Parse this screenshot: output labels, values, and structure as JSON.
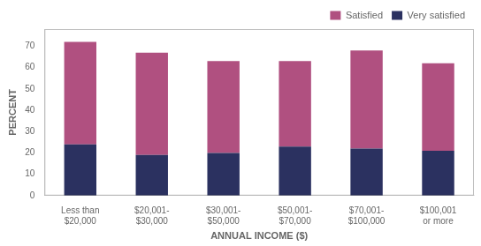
{
  "chart_data": {
    "type": "bar",
    "categories": [
      "Less than\n$20,000",
      "$20,001-\n$30,000",
      "$30,001-\n$50,000",
      "$50,001-\n$70,000",
      "$70,001-\n$100,000",
      "$100,001\nor more"
    ],
    "series": [
      {
        "name": "Very satisfied",
        "color": "#2b3160",
        "values": [
          24,
          19,
          20,
          23,
          22,
          21
        ]
      },
      {
        "name": "Satisfied",
        "color": "#b05080",
        "values": [
          48,
          48,
          43,
          40,
          46,
          41
        ]
      }
    ],
    "xlabel": "ANNUAL INCOME ($)",
    "ylabel": "PERCENT",
    "ylim": [
      0,
      78
    ],
    "yticks": [
      0,
      10,
      20,
      30,
      40,
      50,
      60,
      70
    ],
    "stacked": true,
    "grid": false,
    "legend": "upper right"
  }
}
